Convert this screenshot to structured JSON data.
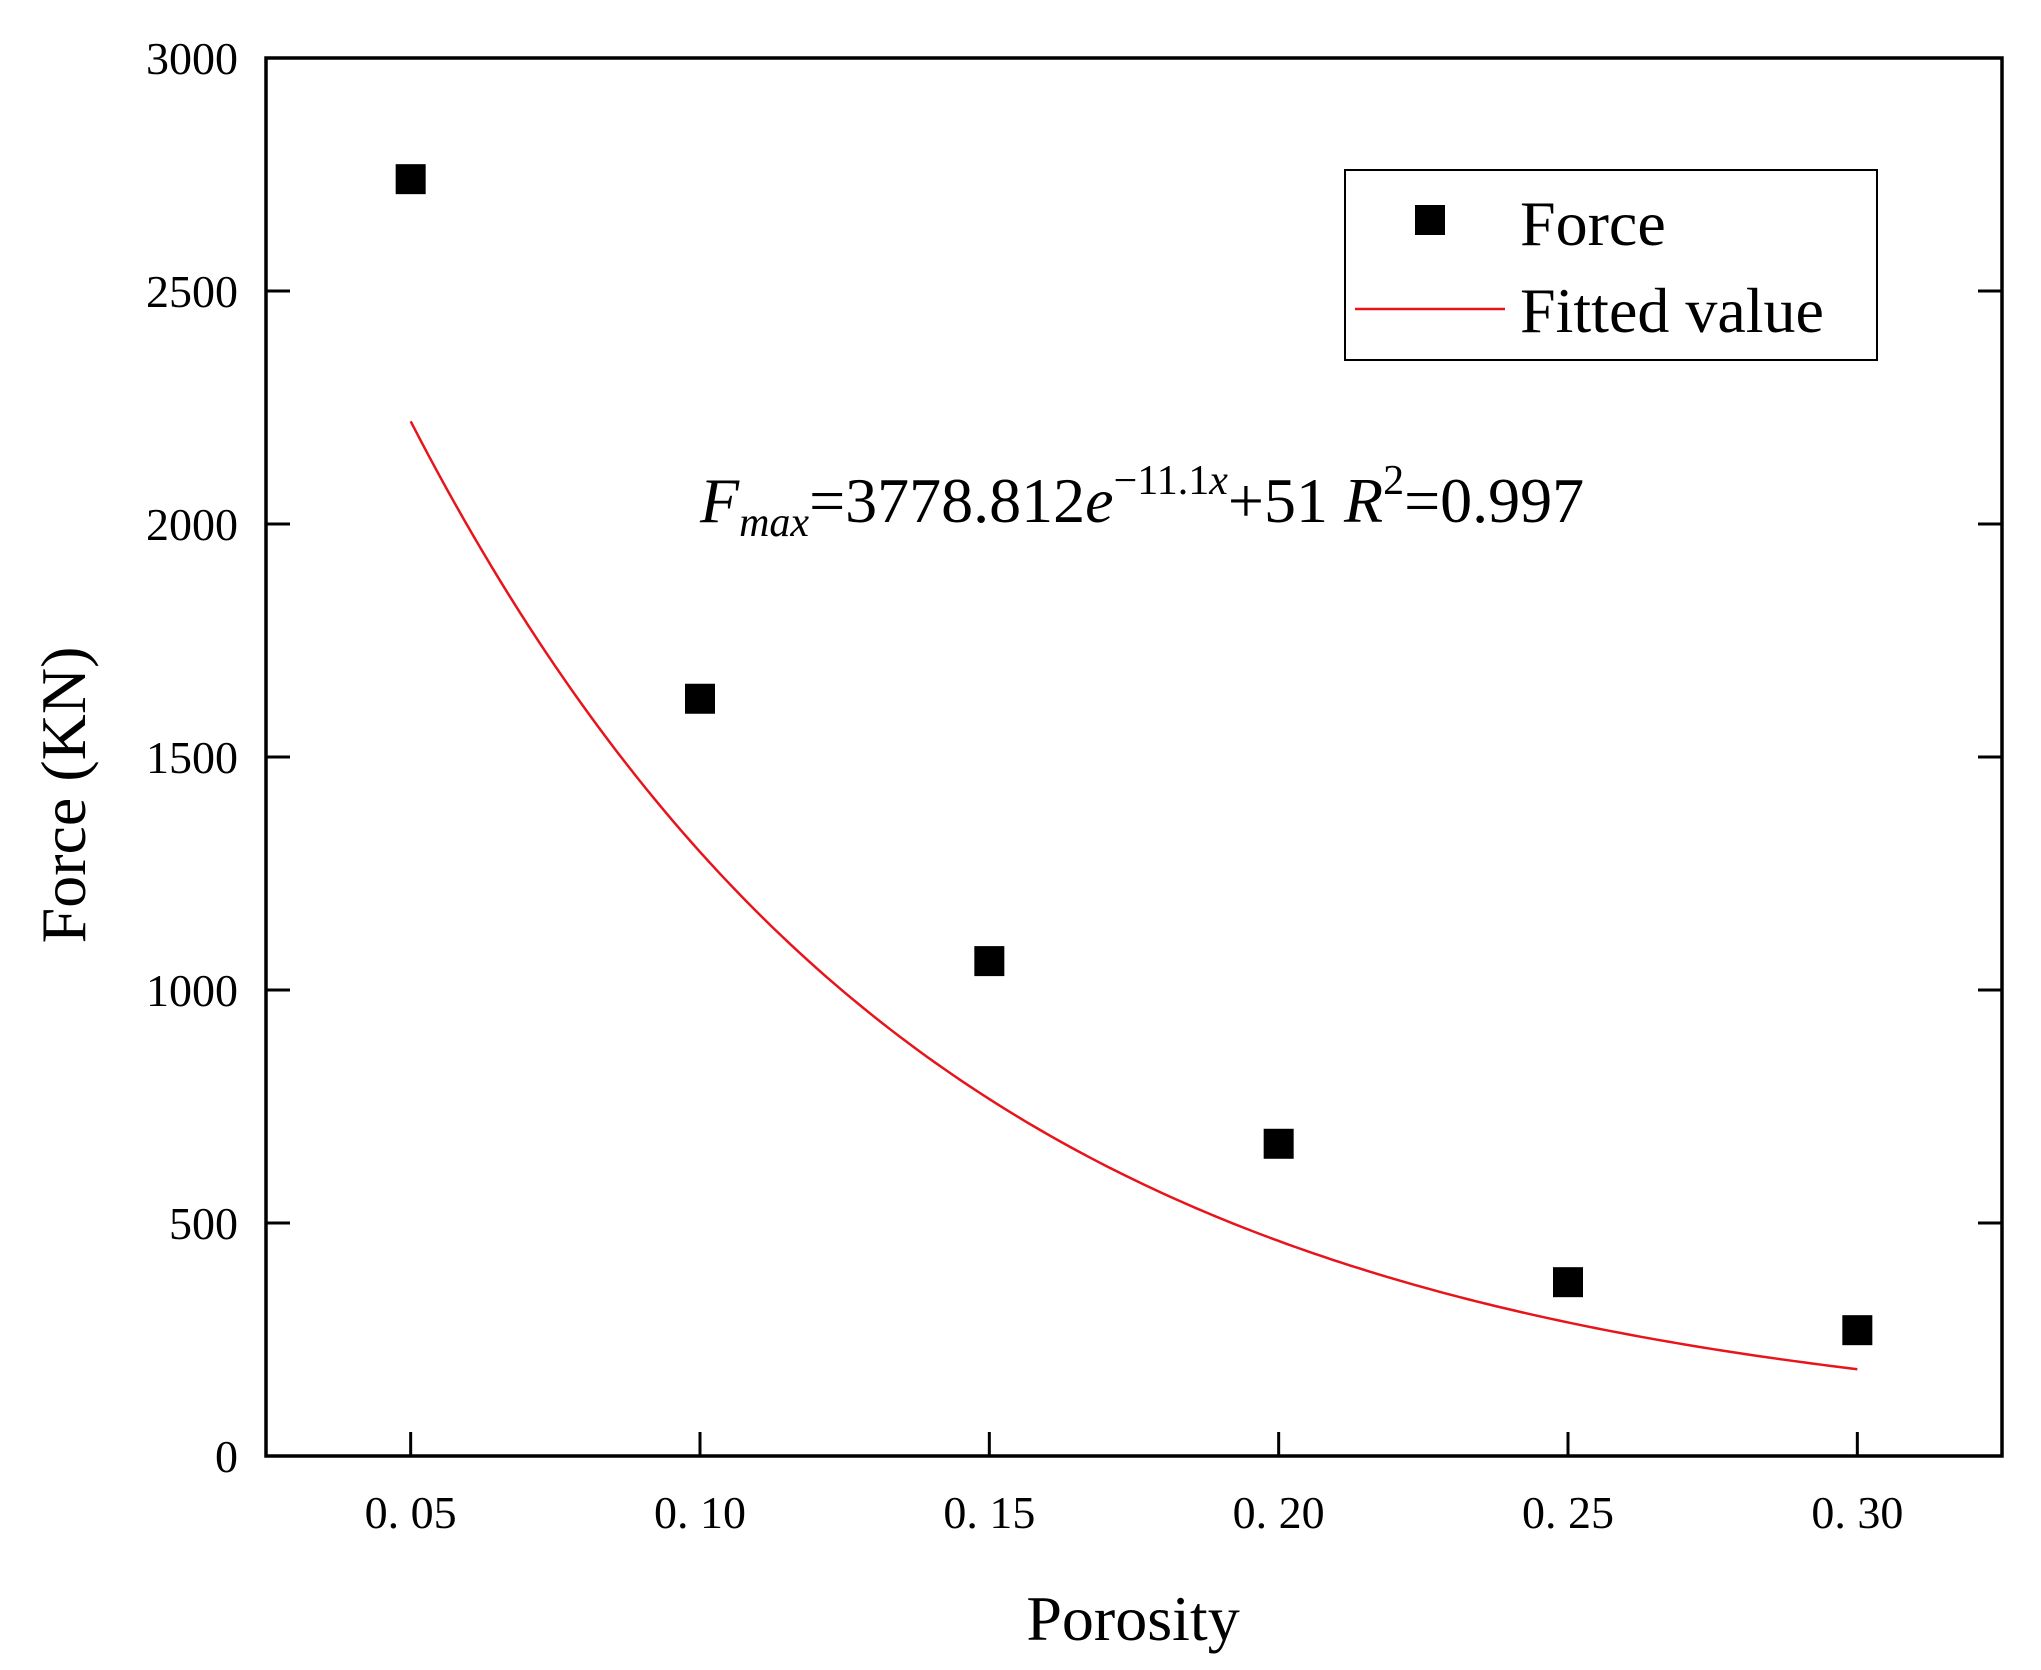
{
  "chart_data": {
    "type": "scatter",
    "xlabel": "Porosity",
    "ylabel": "Force (KN)",
    "xlim": [
      0.025,
      0.325
    ],
    "ylim": [
      0,
      3000
    ],
    "x_ticks": [
      0.05,
      0.1,
      0.15,
      0.2,
      0.25,
      0.3
    ],
    "x_tick_labels": [
      "0. 05",
      "0. 10",
      "0. 15",
      "0. 20",
      "0. 25",
      "0. 30"
    ],
    "y_ticks": [
      0,
      500,
      1000,
      1500,
      2000,
      2500,
      3000
    ],
    "y_tick_labels": [
      "0",
      "500",
      "1000",
      "1500",
      "2000",
      "2500",
      "3000"
    ],
    "grid": false,
    "legend_position": "top-right",
    "series": [
      {
        "name": "Force",
        "kind": "scatter",
        "marker": "square",
        "color": "#000000",
        "x": [
          0.05,
          0.1,
          0.15,
          0.2,
          0.25,
          0.3
        ],
        "y": [
          2740,
          1625,
          1062,
          670,
          373,
          270
        ]
      },
      {
        "name": "Fitted value",
        "kind": "line",
        "color": "#e8141b",
        "formula": {
          "a": 3778.812,
          "b": -11.1,
          "c": 51
        },
        "x_range": [
          0.05,
          0.3
        ]
      }
    ],
    "annotation": {
      "F": "F",
      "sub": "max",
      "eq1": "=3778.812",
      "e": "e",
      "exp": "−11.1",
      "expvar": "x",
      "plus": "+51 ",
      "R": "R",
      "sup": "2",
      "eq2": "=0.997"
    }
  }
}
